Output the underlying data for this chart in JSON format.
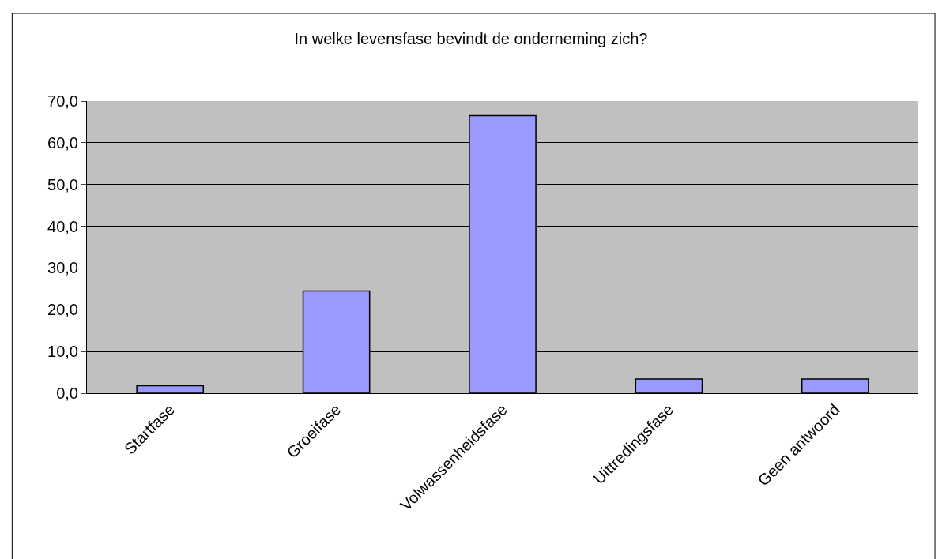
{
  "chart_data": {
    "type": "bar",
    "title": "In welke levensfase bevindt de onderneming zich?",
    "categories": [
      "Startfase",
      "Groeifase",
      "Volwassenheidsfase",
      "Uittredingsfase",
      "Geen antwoord"
    ],
    "values": [
      1.8,
      24.5,
      66.5,
      3.4,
      3.4
    ],
    "color": "#9999ff",
    "ylim": [
      0,
      70
    ],
    "yticks": [
      {
        "value": 0,
        "label": "0,0"
      },
      {
        "value": 10,
        "label": "10,0"
      },
      {
        "value": 20,
        "label": "20,0"
      },
      {
        "value": 30,
        "label": "30,0"
      },
      {
        "value": 40,
        "label": "40,0"
      },
      {
        "value": 50,
        "label": "50,0"
      },
      {
        "value": 60,
        "label": "60,0"
      },
      {
        "value": 70,
        "label": "70,0"
      }
    ],
    "grid": "y",
    "legend": false
  }
}
